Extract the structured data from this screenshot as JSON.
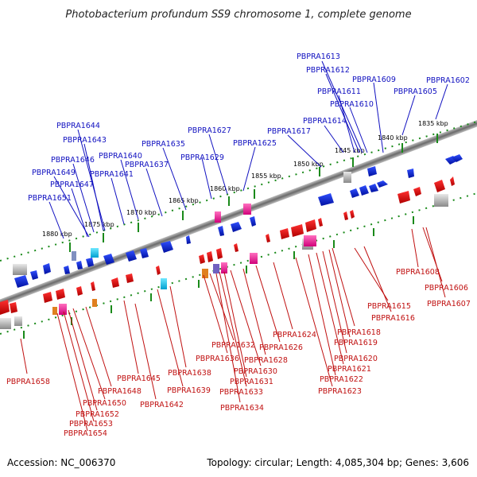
{
  "title": "Photobacterium profundum SS9 chromosome 1, complete genome",
  "accession": "Accession: NC_006370",
  "summary": "Topology: circular; Length: 4,085,304 bp; Genes: 3,606",
  "kbp_ticks": [
    {
      "label": "1835 kbp"
    },
    {
      "label": "1840 kbp"
    },
    {
      "label": "1845 kbp"
    },
    {
      "label": "1850 kbp"
    },
    {
      "label": "1855 kbp"
    },
    {
      "label": "1860 kbp"
    },
    {
      "label": "1865 kbp"
    },
    {
      "label": "1870 kbp"
    },
    {
      "label": "1875 kbp"
    },
    {
      "label": "1880 kbp"
    }
  ],
  "top_labels": [
    "PBPRA1613",
    "PBPRA1612",
    "PBPRA1611",
    "PBPRA1610",
    "PBPRA1609",
    "PBPRA1602",
    "PBPRA1605",
    "PBPRA1614",
    "PBPRA1617",
    "PBPRA1625",
    "PBPRA1627",
    "PBPRA1629",
    "PBPRA1635",
    "PBPRA1637",
    "PBPRA1640",
    "PBPRA1641",
    "PBPRA1644",
    "PBPRA1643",
    "PBPRA1646",
    "PBPRA1649",
    "PBPRA1647",
    "PBPRA1651"
  ],
  "bottom_labels": [
    "PBPRA1608",
    "PBPRA1606",
    "PBPRA1607",
    "PBPRA1615",
    "PBPRA1616",
    "PBPRA1618",
    "PBPRA1619",
    "PBPRA1620",
    "PBPRA1621",
    "PBPRA1622",
    "PBPRA1623",
    "PBPRA1624",
    "PBPRA1626",
    "PBPRA1632",
    "PBPRA1628",
    "PBPRA1636",
    "PBPRA1630",
    "PBPRA1631",
    "PBPRA1633",
    "PBPRA1634",
    "PBPRA1638",
    "PBPRA1639",
    "PBPRA1645",
    "PBPRA1642",
    "PBPRA1648",
    "PBPRA1650",
    "PBPRA1652",
    "PBPRA1653",
    "PBPRA1654",
    "PBPRA1658"
  ],
  "colors": {
    "forward_strand": "#1010c0",
    "reverse_strand": "#c01010",
    "backbone": "#808080",
    "tick": "#1a8a1a"
  }
}
